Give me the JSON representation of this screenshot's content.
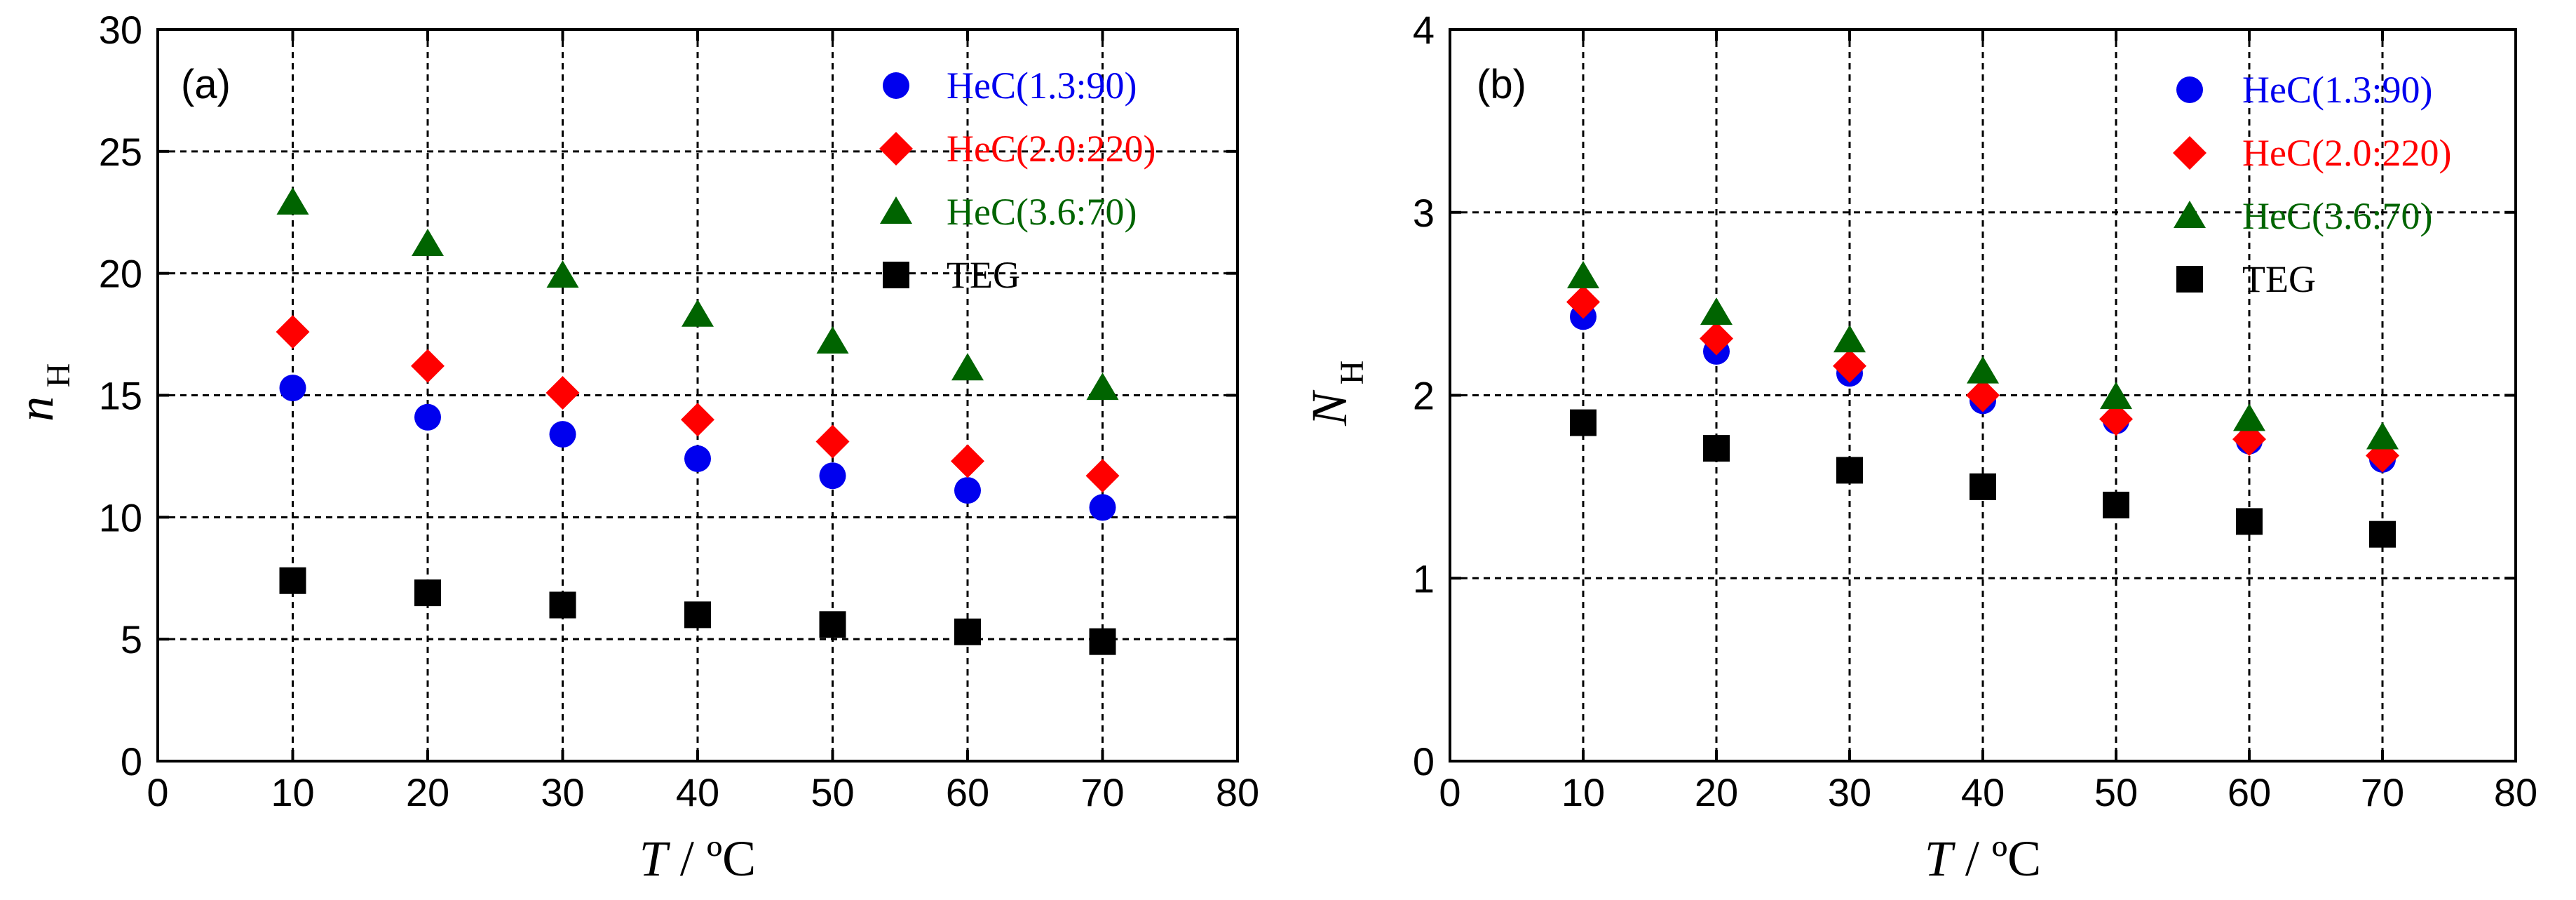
{
  "chart_data": [
    {
      "type": "scatter",
      "panel_label": "(a)",
      "xlabel": "T / ºC",
      "xlabel_main": "T",
      "xlabel_rest": " / ºC",
      "ylabel": "n_H",
      "ylabel_main": "n",
      "ylabel_sub": "H",
      "xlim": [
        0,
        80
      ],
      "ylim": [
        0,
        30
      ],
      "x_ticks": [
        "0",
        "10",
        "20",
        "30",
        "40",
        "50",
        "60",
        "70",
        "80"
      ],
      "y_ticks": [
        "0",
        "5",
        "10",
        "15",
        "20",
        "25",
        "30"
      ],
      "x_grid": [
        10,
        20,
        30,
        40,
        50,
        60,
        70
      ],
      "y_grid": [
        5,
        10,
        15,
        20,
        25
      ],
      "legend_position": "top-right",
      "series": [
        {
          "name": "HeC(1.3:90)",
          "marker": "circle",
          "color": "#0000ee",
          "x": [
            10,
            20,
            30,
            40,
            50,
            60,
            70
          ],
          "y": [
            15.3,
            14.1,
            13.4,
            12.4,
            11.7,
            11.1,
            10.4
          ]
        },
        {
          "name": "HeC(2.0:220)",
          "marker": "diamond",
          "color": "#ff0000",
          "x": [
            10,
            20,
            30,
            40,
            50,
            60,
            70
          ],
          "y": [
            17.6,
            16.2,
            15.1,
            14.0,
            13.1,
            12.3,
            11.7
          ]
        },
        {
          "name": "HeC(3.6:70)",
          "marker": "triangle",
          "color": "#006400",
          "x": [
            10,
            20,
            30,
            40,
            50,
            60,
            70
          ],
          "y": [
            22.9,
            21.2,
            19.9,
            18.3,
            17.2,
            16.1,
            15.3
          ]
        },
        {
          "name": "TEG",
          "marker": "square",
          "color": "#000000",
          "x": [
            10,
            20,
            30,
            40,
            50,
            60,
            70
          ],
          "y": [
            7.4,
            6.9,
            6.4,
            6.0,
            5.6,
            5.3,
            4.9
          ]
        }
      ]
    },
    {
      "type": "scatter",
      "panel_label": "(b)",
      "xlabel": "T / ºC",
      "xlabel_main": "T",
      "xlabel_rest": " / ºC",
      "ylabel": "N_H",
      "ylabel_main": "N",
      "ylabel_sub": "H",
      "xlim": [
        0,
        80
      ],
      "ylim": [
        0,
        4
      ],
      "x_ticks": [
        "0",
        "10",
        "20",
        "30",
        "40",
        "50",
        "60",
        "70",
        "80"
      ],
      "y_ticks": [
        "0",
        "1",
        "2",
        "3",
        "4"
      ],
      "x_grid": [
        10,
        20,
        30,
        40,
        50,
        60,
        70
      ],
      "y_grid": [
        1,
        2,
        3
      ],
      "legend_position": "top-right",
      "series": [
        {
          "name": "HeC(1.3:90)",
          "marker": "circle",
          "color": "#0000ee",
          "x": [
            10,
            20,
            30,
            40,
            50,
            60,
            70
          ],
          "y": [
            2.43,
            2.24,
            2.12,
            1.97,
            1.86,
            1.75,
            1.65
          ]
        },
        {
          "name": "HeC(2.0:220)",
          "marker": "diamond",
          "color": "#ff0000",
          "x": [
            10,
            20,
            30,
            40,
            50,
            60,
            70
          ],
          "y": [
            2.51,
            2.31,
            2.16,
            2.0,
            1.87,
            1.76,
            1.67
          ]
        },
        {
          "name": "HeC(3.6:70)",
          "marker": "triangle",
          "color": "#006400",
          "x": [
            10,
            20,
            30,
            40,
            50,
            60,
            70
          ],
          "y": [
            2.65,
            2.45,
            2.3,
            2.13,
            1.99,
            1.87,
            1.77
          ]
        },
        {
          "name": "TEG",
          "marker": "square",
          "color": "#000000",
          "x": [
            10,
            20,
            30,
            40,
            50,
            60,
            70
          ],
          "y": [
            1.85,
            1.71,
            1.59,
            1.5,
            1.4,
            1.31,
            1.24
          ]
        }
      ]
    }
  ]
}
